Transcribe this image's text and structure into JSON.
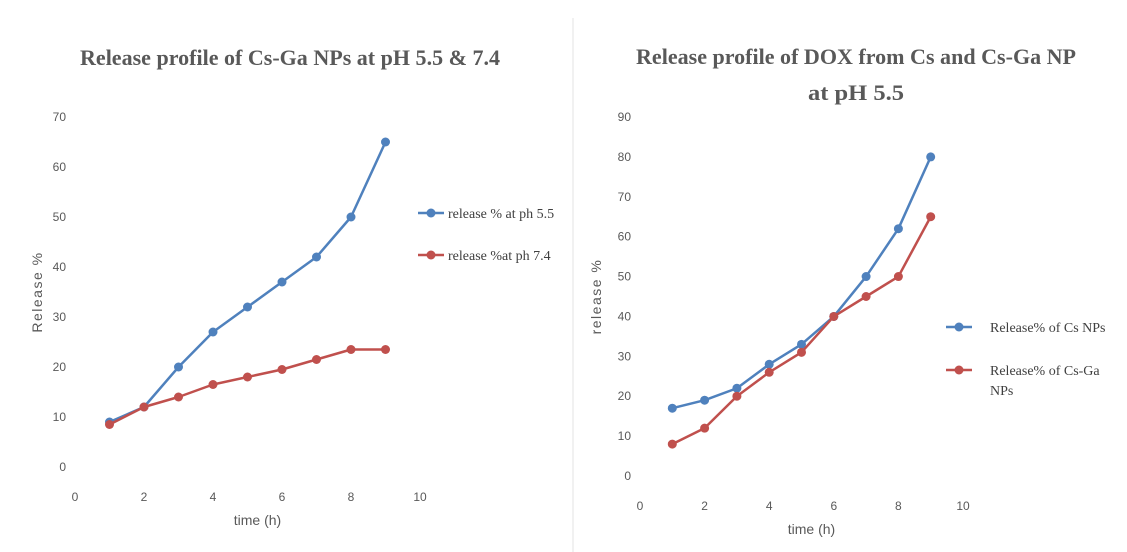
{
  "colors": {
    "series1": "#4f81bd",
    "series2": "#c0504d",
    "text": "#595959",
    "axis": "#bfbfbf"
  },
  "chart_data": [
    {
      "type": "line",
      "title": [
        "Release profile of Cs-Ga NPs at pH 5.5 & 7.4"
      ],
      "xlabel": "time (h)",
      "ylabel": "Release %",
      "xlim": [
        0,
        10
      ],
      "ylim": [
        0,
        70
      ],
      "xticks": [
        "0",
        "2",
        "4",
        "6",
        "8",
        "10"
      ],
      "yticks": [
        "0",
        "10",
        "20",
        "30",
        "40",
        "50",
        "60",
        "70"
      ],
      "grid": false,
      "legend": "right",
      "x": [
        1,
        2,
        3,
        4,
        5,
        6,
        7,
        8,
        9
      ],
      "series": [
        {
          "name": [
            "release % at ph 5.5"
          ],
          "values": [
            9,
            12,
            20,
            27,
            32,
            37,
            42,
            50,
            65
          ]
        },
        {
          "name": [
            "release %at ph 7.4"
          ],
          "values": [
            8.5,
            12,
            14,
            16.5,
            18,
            19.5,
            21.5,
            23.5,
            23.5
          ]
        }
      ]
    },
    {
      "type": "line",
      "title": [
        "Release profile of DOX from Cs and Cs-Ga NP",
        "at pH 5.5"
      ],
      "xlabel": "time (h)",
      "ylabel": "release %",
      "xlim": [
        0,
        10
      ],
      "ylim": [
        0,
        90
      ],
      "xticks": [
        "0",
        "2",
        "4",
        "6",
        "8",
        "10"
      ],
      "yticks": [
        "0",
        "10",
        "20",
        "30",
        "40",
        "50",
        "60",
        "70",
        "80",
        "90"
      ],
      "grid": false,
      "legend": "right",
      "x": [
        1,
        2,
        3,
        4,
        5,
        6,
        7,
        8,
        9
      ],
      "series": [
        {
          "name": [
            "Release% of Cs NPs"
          ],
          "values": [
            17,
            19,
            22,
            28,
            33,
            40,
            50,
            62,
            80
          ]
        },
        {
          "name": [
            "Release% of Cs-Ga",
            "NPs"
          ],
          "values": [
            8,
            12,
            20,
            26,
            31,
            40,
            45,
            50,
            65
          ]
        }
      ]
    }
  ]
}
